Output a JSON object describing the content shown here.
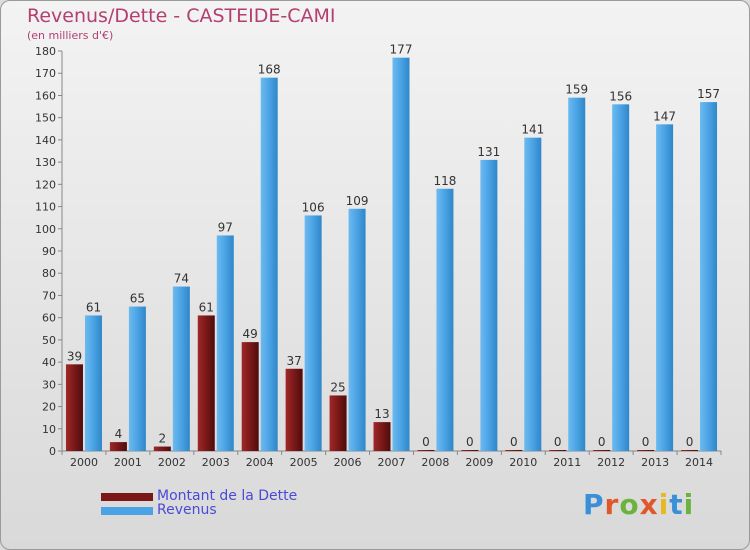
{
  "title": "Revenus/Dette - CASTEIDE-CAMI",
  "subtitle": "(en milliers d'€)",
  "logo": {
    "text": "Proxiti",
    "colors": [
      "#3a8fd8",
      "#e0582a",
      "#6cb33e",
      "#e0582a",
      "#e8b820",
      "#3a8fd8",
      "#6cb33e"
    ]
  },
  "colors": {
    "debt": "#7a1818",
    "revenue": "#4aa3e4"
  },
  "chart_data": {
    "type": "bar",
    "categories": [
      "2000",
      "2001",
      "2002",
      "2003",
      "2004",
      "2005",
      "2006",
      "2007",
      "2008",
      "2009",
      "2010",
      "2011",
      "2012",
      "2013",
      "2014"
    ],
    "series": [
      {
        "name": "Montant de la Dette",
        "values": [
          39,
          4,
          2,
          61,
          49,
          37,
          25,
          13,
          0,
          0,
          0,
          0,
          0,
          0,
          0
        ]
      },
      {
        "name": "Revenus",
        "values": [
          61,
          65,
          74,
          97,
          168,
          106,
          109,
          177,
          118,
          131,
          141,
          159,
          156,
          147,
          157
        ]
      }
    ],
    "ylim": [
      0,
      180
    ],
    "yticks": [
      0,
      10,
      20,
      30,
      40,
      50,
      60,
      70,
      80,
      90,
      100,
      110,
      120,
      130,
      140,
      150,
      160,
      170,
      180
    ],
    "grid": false,
    "legend_position": "bottom-left"
  }
}
